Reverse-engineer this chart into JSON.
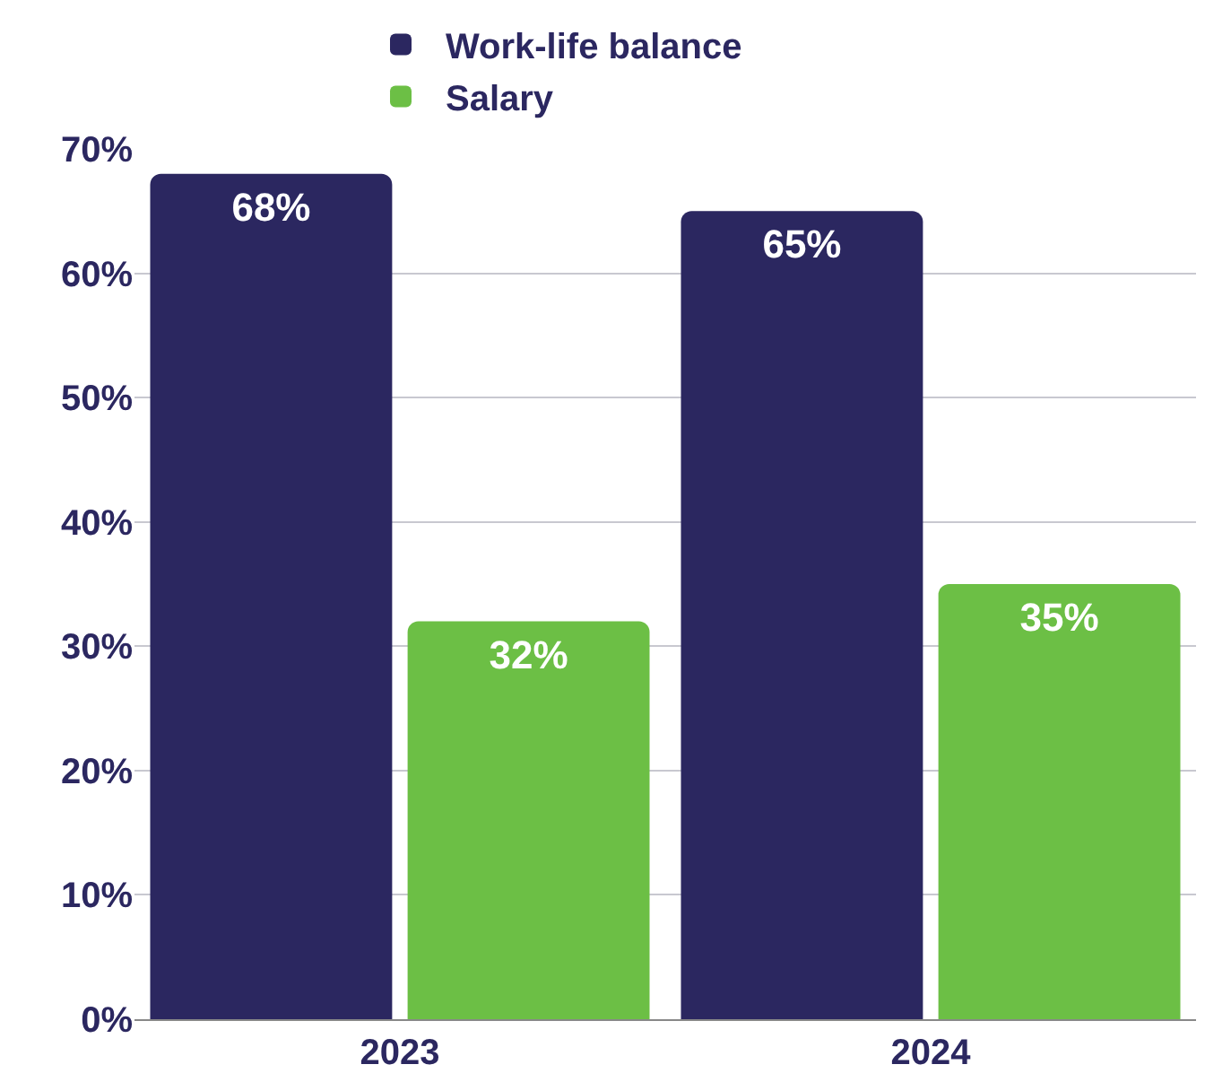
{
  "chart_data": {
    "type": "bar",
    "categories": [
      "2023",
      "2024"
    ],
    "series": [
      {
        "name": "Work-life balance",
        "color": "#2b2760",
        "values": [
          68,
          65
        ],
        "value_labels": [
          "68%",
          "65%"
        ]
      },
      {
        "name": "Salary",
        "color": "#6cbf45",
        "values": [
          32,
          35
        ],
        "value_labels": [
          "32%",
          "35%"
        ]
      }
    ],
    "ylim": [
      0,
      70
    ],
    "yticks": [
      {
        "value": 0,
        "label": "0%"
      },
      {
        "value": 10,
        "label": "10%"
      },
      {
        "value": 20,
        "label": "20%"
      },
      {
        "value": 30,
        "label": "30%"
      },
      {
        "value": 40,
        "label": "40%"
      },
      {
        "value": 50,
        "label": "50%"
      },
      {
        "value": 60,
        "label": "60%"
      },
      {
        "value": 70,
        "label": "70%"
      }
    ],
    "grid": "y",
    "legend": "top"
  }
}
